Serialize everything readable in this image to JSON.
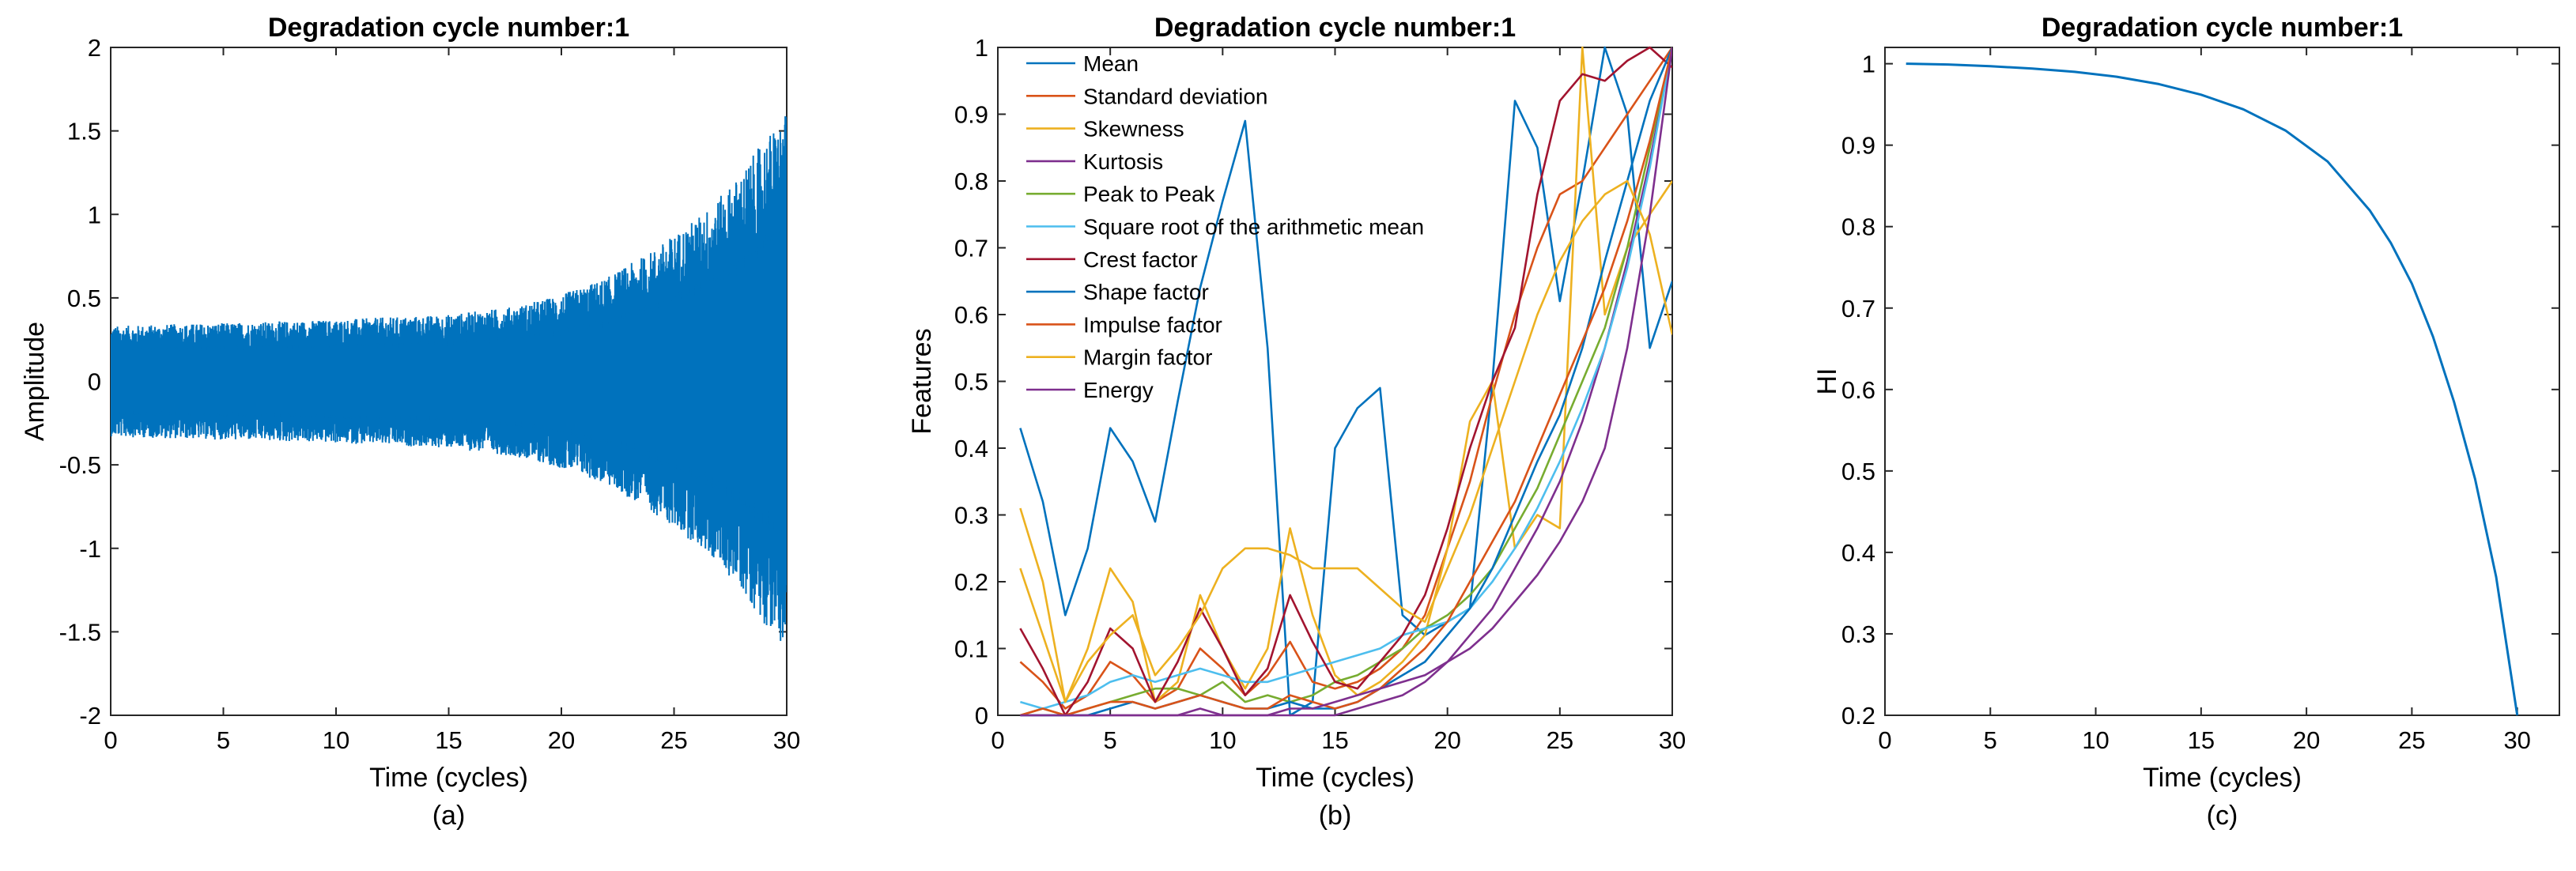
{
  "chart_data": [
    {
      "type": "line",
      "panel_label": "(a)",
      "title": "Degradation cycle number:1",
      "xlabel": "Time (cycles)",
      "ylabel": "Amplitude",
      "xlim": [
        0,
        30
      ],
      "ylim": [
        -2,
        2
      ],
      "xticks": [
        "0",
        "5",
        "10",
        "15",
        "20",
        "25",
        "30"
      ],
      "yticks": [
        "-2",
        "-1.5",
        "-1",
        "-0.5",
        "0",
        "0.5",
        "1",
        "1.5",
        "2"
      ],
      "color": "#0072BD",
      "envelope": {
        "x": [
          0,
          2,
          5,
          10,
          15,
          18,
          20,
          22,
          24,
          26,
          27,
          28,
          29,
          30
        ],
        "amplitude": [
          0.33,
          0.34,
          0.35,
          0.37,
          0.4,
          0.45,
          0.52,
          0.62,
          0.78,
          0.98,
          1.1,
          1.25,
          1.45,
          1.6
        ]
      }
    },
    {
      "type": "line",
      "panel_label": "(b)",
      "title": "Degradation cycle number:1",
      "xlabel": "Time (cycles)",
      "ylabel": "Features",
      "xlim": [
        0,
        30
      ],
      "ylim": [
        0,
        1
      ],
      "xticks": [
        "0",
        "5",
        "10",
        "15",
        "20",
        "25",
        "30"
      ],
      "yticks": [
        "0",
        "0.1",
        "0.2",
        "0.3",
        "0.4",
        "0.5",
        "0.6",
        "0.7",
        "0.8",
        "0.9",
        "1"
      ],
      "x": [
        1,
        2,
        3,
        4,
        5,
        6,
        7,
        8,
        9,
        10,
        11,
        12,
        13,
        14,
        15,
        16,
        17,
        18,
        19,
        20,
        21,
        22,
        23,
        24,
        25,
        26,
        27,
        28,
        29,
        30
      ],
      "series": [
        {
          "name": "Mean",
          "color": "#0072BD",
          "values": [
            0.43,
            0.32,
            0.15,
            0.25,
            0.43,
            0.38,
            0.29,
            0.47,
            0.64,
            0.77,
            0.89,
            0.55,
            0.0,
            0.02,
            0.4,
            0.46,
            0.49,
            0.15,
            0.12,
            0.14,
            0.16,
            0.5,
            0.92,
            0.85,
            0.62,
            0.8,
            1.0,
            0.9,
            0.55,
            0.65
          ]
        },
        {
          "name": "Standard deviation",
          "color": "#D95319",
          "values": [
            0.08,
            0.05,
            0.01,
            0.03,
            0.08,
            0.06,
            0.02,
            0.04,
            0.1,
            0.07,
            0.03,
            0.06,
            0.11,
            0.05,
            0.04,
            0.05,
            0.07,
            0.1,
            0.15,
            0.25,
            0.35,
            0.48,
            0.6,
            0.7,
            0.78,
            0.8,
            0.85,
            0.9,
            0.95,
            1.0
          ]
        },
        {
          "name": "Skewness",
          "color": "#EDB120",
          "values": [
            0.31,
            0.2,
            0.02,
            0.1,
            0.22,
            0.17,
            0.02,
            0.05,
            0.18,
            0.1,
            0.04,
            0.1,
            0.28,
            0.15,
            0.06,
            0.03,
            0.05,
            0.08,
            0.12,
            0.25,
            0.44,
            0.5,
            0.25,
            0.3,
            0.28,
            1.0,
            0.6,
            0.7,
            0.75,
            0.8
          ]
        },
        {
          "name": "Kurtosis",
          "color": "#7E2F8E",
          "values": [
            0.0,
            0.0,
            0.0,
            0.0,
            0.0,
            0.0,
            0.0,
            0.0,
            0.01,
            0.0,
            0.0,
            0.0,
            0.0,
            0.0,
            0.0,
            0.01,
            0.02,
            0.03,
            0.05,
            0.08,
            0.12,
            0.16,
            0.22,
            0.28,
            0.35,
            0.44,
            0.55,
            0.68,
            0.83,
            1.0
          ]
        },
        {
          "name": "Peak to Peak",
          "color": "#77AC30",
          "values": [
            0.0,
            0.01,
            0.0,
            0.01,
            0.02,
            0.03,
            0.04,
            0.04,
            0.03,
            0.05,
            0.02,
            0.03,
            0.02,
            0.03,
            0.05,
            0.06,
            0.08,
            0.1,
            0.13,
            0.15,
            0.18,
            0.22,
            0.28,
            0.34,
            0.42,
            0.5,
            0.58,
            0.7,
            0.85,
            1.0
          ]
        },
        {
          "name": "Square root of the arithmetic mean",
          "color": "#4DBEEE",
          "values": [
            0.02,
            0.01,
            0.02,
            0.03,
            0.05,
            0.06,
            0.05,
            0.06,
            0.07,
            0.06,
            0.05,
            0.05,
            0.06,
            0.07,
            0.08,
            0.09,
            0.1,
            0.12,
            0.13,
            0.14,
            0.16,
            0.2,
            0.25,
            0.31,
            0.38,
            0.46,
            0.55,
            0.67,
            0.82,
            1.0
          ]
        },
        {
          "name": "Crest factor",
          "color": "#A2142F",
          "values": [
            0.13,
            0.07,
            0.0,
            0.05,
            0.13,
            0.1,
            0.02,
            0.08,
            0.16,
            0.1,
            0.03,
            0.07,
            0.18,
            0.11,
            0.05,
            0.04,
            0.08,
            0.12,
            0.18,
            0.28,
            0.4,
            0.5,
            0.58,
            0.78,
            0.92,
            0.96,
            0.95,
            0.98,
            1.0,
            0.97
          ]
        },
        {
          "name": "Shape factor",
          "color": "#0072BD",
          "values": [
            0.0,
            0.0,
            0.0,
            0.0,
            0.01,
            0.02,
            0.01,
            0.02,
            0.03,
            0.02,
            0.01,
            0.01,
            0.02,
            0.01,
            0.01,
            0.02,
            0.04,
            0.06,
            0.08,
            0.12,
            0.16,
            0.22,
            0.3,
            0.38,
            0.45,
            0.55,
            0.68,
            0.8,
            0.92,
            1.0
          ]
        },
        {
          "name": "Impulse factor",
          "color": "#D95319",
          "values": [
            0.0,
            0.01,
            0.0,
            0.01,
            0.02,
            0.02,
            0.01,
            0.02,
            0.03,
            0.02,
            0.01,
            0.01,
            0.03,
            0.02,
            0.01,
            0.02,
            0.04,
            0.07,
            0.1,
            0.14,
            0.2,
            0.26,
            0.32,
            0.4,
            0.48,
            0.56,
            0.64,
            0.74,
            0.86,
            1.0
          ]
        },
        {
          "name": "Margin factor",
          "color": "#EDB120",
          "values": [
            0.22,
            0.12,
            0.02,
            0.08,
            0.12,
            0.15,
            0.06,
            0.1,
            0.15,
            0.22,
            0.25,
            0.25,
            0.24,
            0.22,
            0.22,
            0.22,
            0.19,
            0.16,
            0.14,
            0.22,
            0.3,
            0.4,
            0.5,
            0.6,
            0.68,
            0.74,
            0.78,
            0.8,
            0.72,
            0.57
          ]
        },
        {
          "name": "Energy",
          "color": "#7E2F8E",
          "values": [
            0.0,
            0.0,
            0.0,
            0.0,
            0.0,
            0.0,
            0.0,
            0.0,
            0.0,
            0.0,
            0.0,
            0.0,
            0.01,
            0.01,
            0.02,
            0.03,
            0.04,
            0.05,
            0.06,
            0.08,
            0.1,
            0.13,
            0.17,
            0.21,
            0.26,
            0.32,
            0.4,
            0.55,
            0.75,
            1.0
          ]
        }
      ]
    },
    {
      "type": "line",
      "panel_label": "(c)",
      "title": "Degradation cycle number:1",
      "xlabel": "Time (cycles)",
      "ylabel": "HI",
      "xlim": [
        0,
        32
      ],
      "ylim": [
        0.2,
        1.02
      ],
      "xticks": [
        "0",
        "5",
        "10",
        "15",
        "20",
        "25",
        "30"
      ],
      "yticks": [
        "0.2",
        "0.3",
        "0.4",
        "0.5",
        "0.6",
        "0.7",
        "0.8",
        "0.9",
        "1"
      ],
      "color": "#0072BD",
      "x": [
        1,
        3,
        5,
        7,
        9,
        11,
        13,
        15,
        17,
        19,
        21,
        23,
        24,
        25,
        26,
        27,
        28,
        29,
        30
      ],
      "values": [
        1.0,
        0.999,
        0.997,
        0.994,
        0.99,
        0.984,
        0.975,
        0.962,
        0.944,
        0.918,
        0.88,
        0.82,
        0.78,
        0.73,
        0.665,
        0.585,
        0.49,
        0.37,
        0.2
      ]
    }
  ]
}
